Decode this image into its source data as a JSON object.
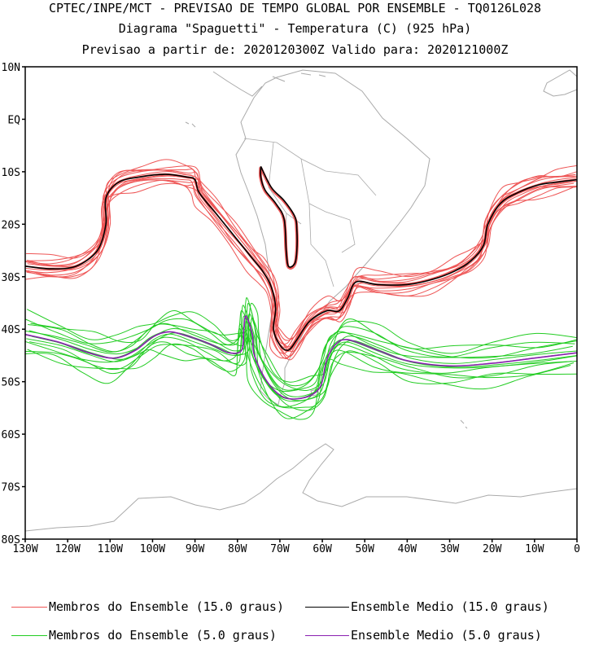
{
  "header": {
    "line1": "CPTEC/INPE/MCT - PREVISAO DE TEMPO GLOBAL POR ENSEMBLE - TQ0126L028",
    "line2": "Diagrama \"Spaguetti\" - Temperatura (C) (925 hPa)",
    "line3": "Previsao a partir de: 2020120300Z  Valido para: 2020121000Z"
  },
  "colors": {
    "member15": "#ee5555",
    "mean15": "#000000",
    "member5": "#22cc22",
    "mean5": "#8a1fb0",
    "coast": "#aaaaaa"
  },
  "chart_data": {
    "type": "line",
    "title": "Diagrama \"Spaguetti\" - Temperatura (C) (925 hPa)",
    "xlabel": "",
    "ylabel": "",
    "xlim": [
      -130,
      0
    ],
    "ylim": [
      -80,
      10
    ],
    "x_ticks": [
      {
        "value": -130,
        "label": "130W"
      },
      {
        "value": -120,
        "label": "120W"
      },
      {
        "value": -110,
        "label": "110W"
      },
      {
        "value": -100,
        "label": "100W"
      },
      {
        "value": -90,
        "label": "90W"
      },
      {
        "value": -80,
        "label": "80W"
      },
      {
        "value": -70,
        "label": "70W"
      },
      {
        "value": -60,
        "label": "60W"
      },
      {
        "value": -50,
        "label": "50W"
      },
      {
        "value": -40,
        "label": "40W"
      },
      {
        "value": -30,
        "label": "30W"
      },
      {
        "value": -20,
        "label": "20W"
      },
      {
        "value": -10,
        "label": "10W"
      },
      {
        "value": 0,
        "label": "0"
      }
    ],
    "y_ticks": [
      {
        "value": 10,
        "label": "10N"
      },
      {
        "value": 0,
        "label": "EQ"
      },
      {
        "value": -10,
        "label": "10S"
      },
      {
        "value": -20,
        "label": "20S"
      },
      {
        "value": -30,
        "label": "30S"
      },
      {
        "value": -40,
        "label": "40S"
      },
      {
        "value": -50,
        "label": "50S"
      },
      {
        "value": -60,
        "label": "60S"
      },
      {
        "value": -70,
        "label": "70S"
      },
      {
        "value": -80,
        "label": "80S"
      }
    ],
    "series": [
      {
        "name": "Ensemble Medio (15.0 graus)",
        "role": "mean",
        "color": "#000000",
        "points": [
          [
            -130,
            -28
          ],
          [
            -124,
            -28.5
          ],
          [
            -118,
            -28
          ],
          [
            -113,
            -25
          ],
          [
            -111,
            -20
          ],
          [
            -111,
            -15
          ],
          [
            -108,
            -12
          ],
          [
            -103,
            -11
          ],
          [
            -97,
            -10.5
          ],
          [
            -92,
            -11
          ],
          [
            -90,
            -11.5
          ],
          [
            -89,
            -14
          ],
          [
            -85,
            -18
          ],
          [
            -81,
            -22
          ],
          [
            -77,
            -26
          ],
          [
            -74,
            -29
          ],
          [
            -72,
            -32
          ],
          [
            -71,
            -36
          ],
          [
            -71.5,
            -40
          ],
          [
            -70,
            -43
          ],
          [
            -68,
            -44
          ],
          [
            -66,
            -42
          ],
          [
            -63,
            -38.5
          ],
          [
            -59,
            -36.5
          ],
          [
            -56,
            -36.5
          ],
          [
            -54,
            -34
          ],
          [
            -52,
            -31
          ],
          [
            -47,
            -31.5
          ],
          [
            -40,
            -31.5
          ],
          [
            -34,
            -30.5
          ],
          [
            -29,
            -29
          ],
          [
            -25,
            -27
          ],
          [
            -22,
            -24
          ],
          [
            -21,
            -20
          ],
          [
            -18,
            -16
          ],
          [
            -14,
            -14
          ],
          [
            -9,
            -12.5
          ],
          [
            -5,
            -12
          ],
          [
            0,
            -11.5
          ]
        ]
      },
      {
        "name": "Ensemble Medio (15.0 graus) - Andes",
        "role": "mean",
        "color": "#000000",
        "points": [
          [
            -74.5,
            -9
          ],
          [
            -72,
            -13
          ],
          [
            -69,
            -15.5
          ],
          [
            -66.5,
            -18.5
          ],
          [
            -66,
            -21
          ],
          [
            -66,
            -25
          ],
          [
            -66.5,
            -27.5
          ],
          [
            -68,
            -28
          ],
          [
            -68.5,
            -25
          ],
          [
            -69,
            -19
          ],
          [
            -71,
            -16
          ],
          [
            -73.5,
            -13.5
          ],
          [
            -74.5,
            -11
          ],
          [
            -74.5,
            -9
          ]
        ]
      },
      {
        "name": "Ensemble Medio (5.0 graus)",
        "role": "mean",
        "color": "#8a1fb0",
        "points": [
          [
            -130,
            -41
          ],
          [
            -122,
            -42.5
          ],
          [
            -115,
            -44.5
          ],
          [
            -109,
            -45.5
          ],
          [
            -104,
            -44
          ],
          [
            -100,
            -41.5
          ],
          [
            -96,
            -40.5
          ],
          [
            -91,
            -41.5
          ],
          [
            -86,
            -43
          ],
          [
            -82,
            -44.5
          ],
          [
            -79,
            -44
          ],
          [
            -78.5,
            -40
          ],
          [
            -78,
            -37.5
          ],
          [
            -76.5,
            -41
          ],
          [
            -76,
            -45
          ],
          [
            -73,
            -50
          ],
          [
            -69,
            -53
          ],
          [
            -64,
            -53
          ],
          [
            -60.5,
            -51
          ],
          [
            -59,
            -46
          ],
          [
            -57,
            -43
          ],
          [
            -54,
            -42
          ],
          [
            -47,
            -44
          ],
          [
            -40,
            -46
          ],
          [
            -30,
            -47
          ],
          [
            -20,
            -46.5
          ],
          [
            -10,
            -45.5
          ],
          [
            0,
            -44.5
          ]
        ]
      },
      {
        "name": "Membros do Ensemble (15.0 graus)",
        "role": "member",
        "color": "#ee5555",
        "count": 14,
        "offsets_y": [
          -1.6,
          -1.2,
          -0.9,
          -0.6,
          -0.3,
          0.1,
          0.4,
          0.7,
          1.0,
          1.3,
          1.6,
          -2.2,
          2.1,
          -0.2
        ],
        "offsets_x": [
          0.6,
          -0.8,
          1.2,
          -1.5,
          0.3,
          -0.4,
          1.0,
          -1.1,
          0.8,
          -0.6,
          1.5,
          -1.8,
          0.4,
          2.0
        ]
      },
      {
        "name": "Membros do Ensemble (5.0 graus)",
        "role": "member",
        "color": "#22cc22",
        "count": 14,
        "offsets_y": [
          -3.0,
          -2.4,
          -1.8,
          -1.2,
          -0.6,
          0,
          0.6,
          1.2,
          1.8,
          2.4,
          3.0,
          -3.6,
          3.6,
          -0.3
        ],
        "offsets_x": [
          1.0,
          -1.5,
          2.0,
          -2.5,
          0.5,
          -0.8,
          1.8,
          -2.0,
          1.2,
          -1.0,
          2.5,
          -3.0,
          0.8,
          3.0
        ]
      }
    ],
    "grid": false
  },
  "legend": {
    "member15": "Membros do Ensemble (15.0 graus)",
    "mean15": "Ensemble Medio (15.0 graus)",
    "member5": "Membros do Ensemble (5.0 graus)",
    "mean5": "Ensemble Medio (5.0 graus)"
  }
}
